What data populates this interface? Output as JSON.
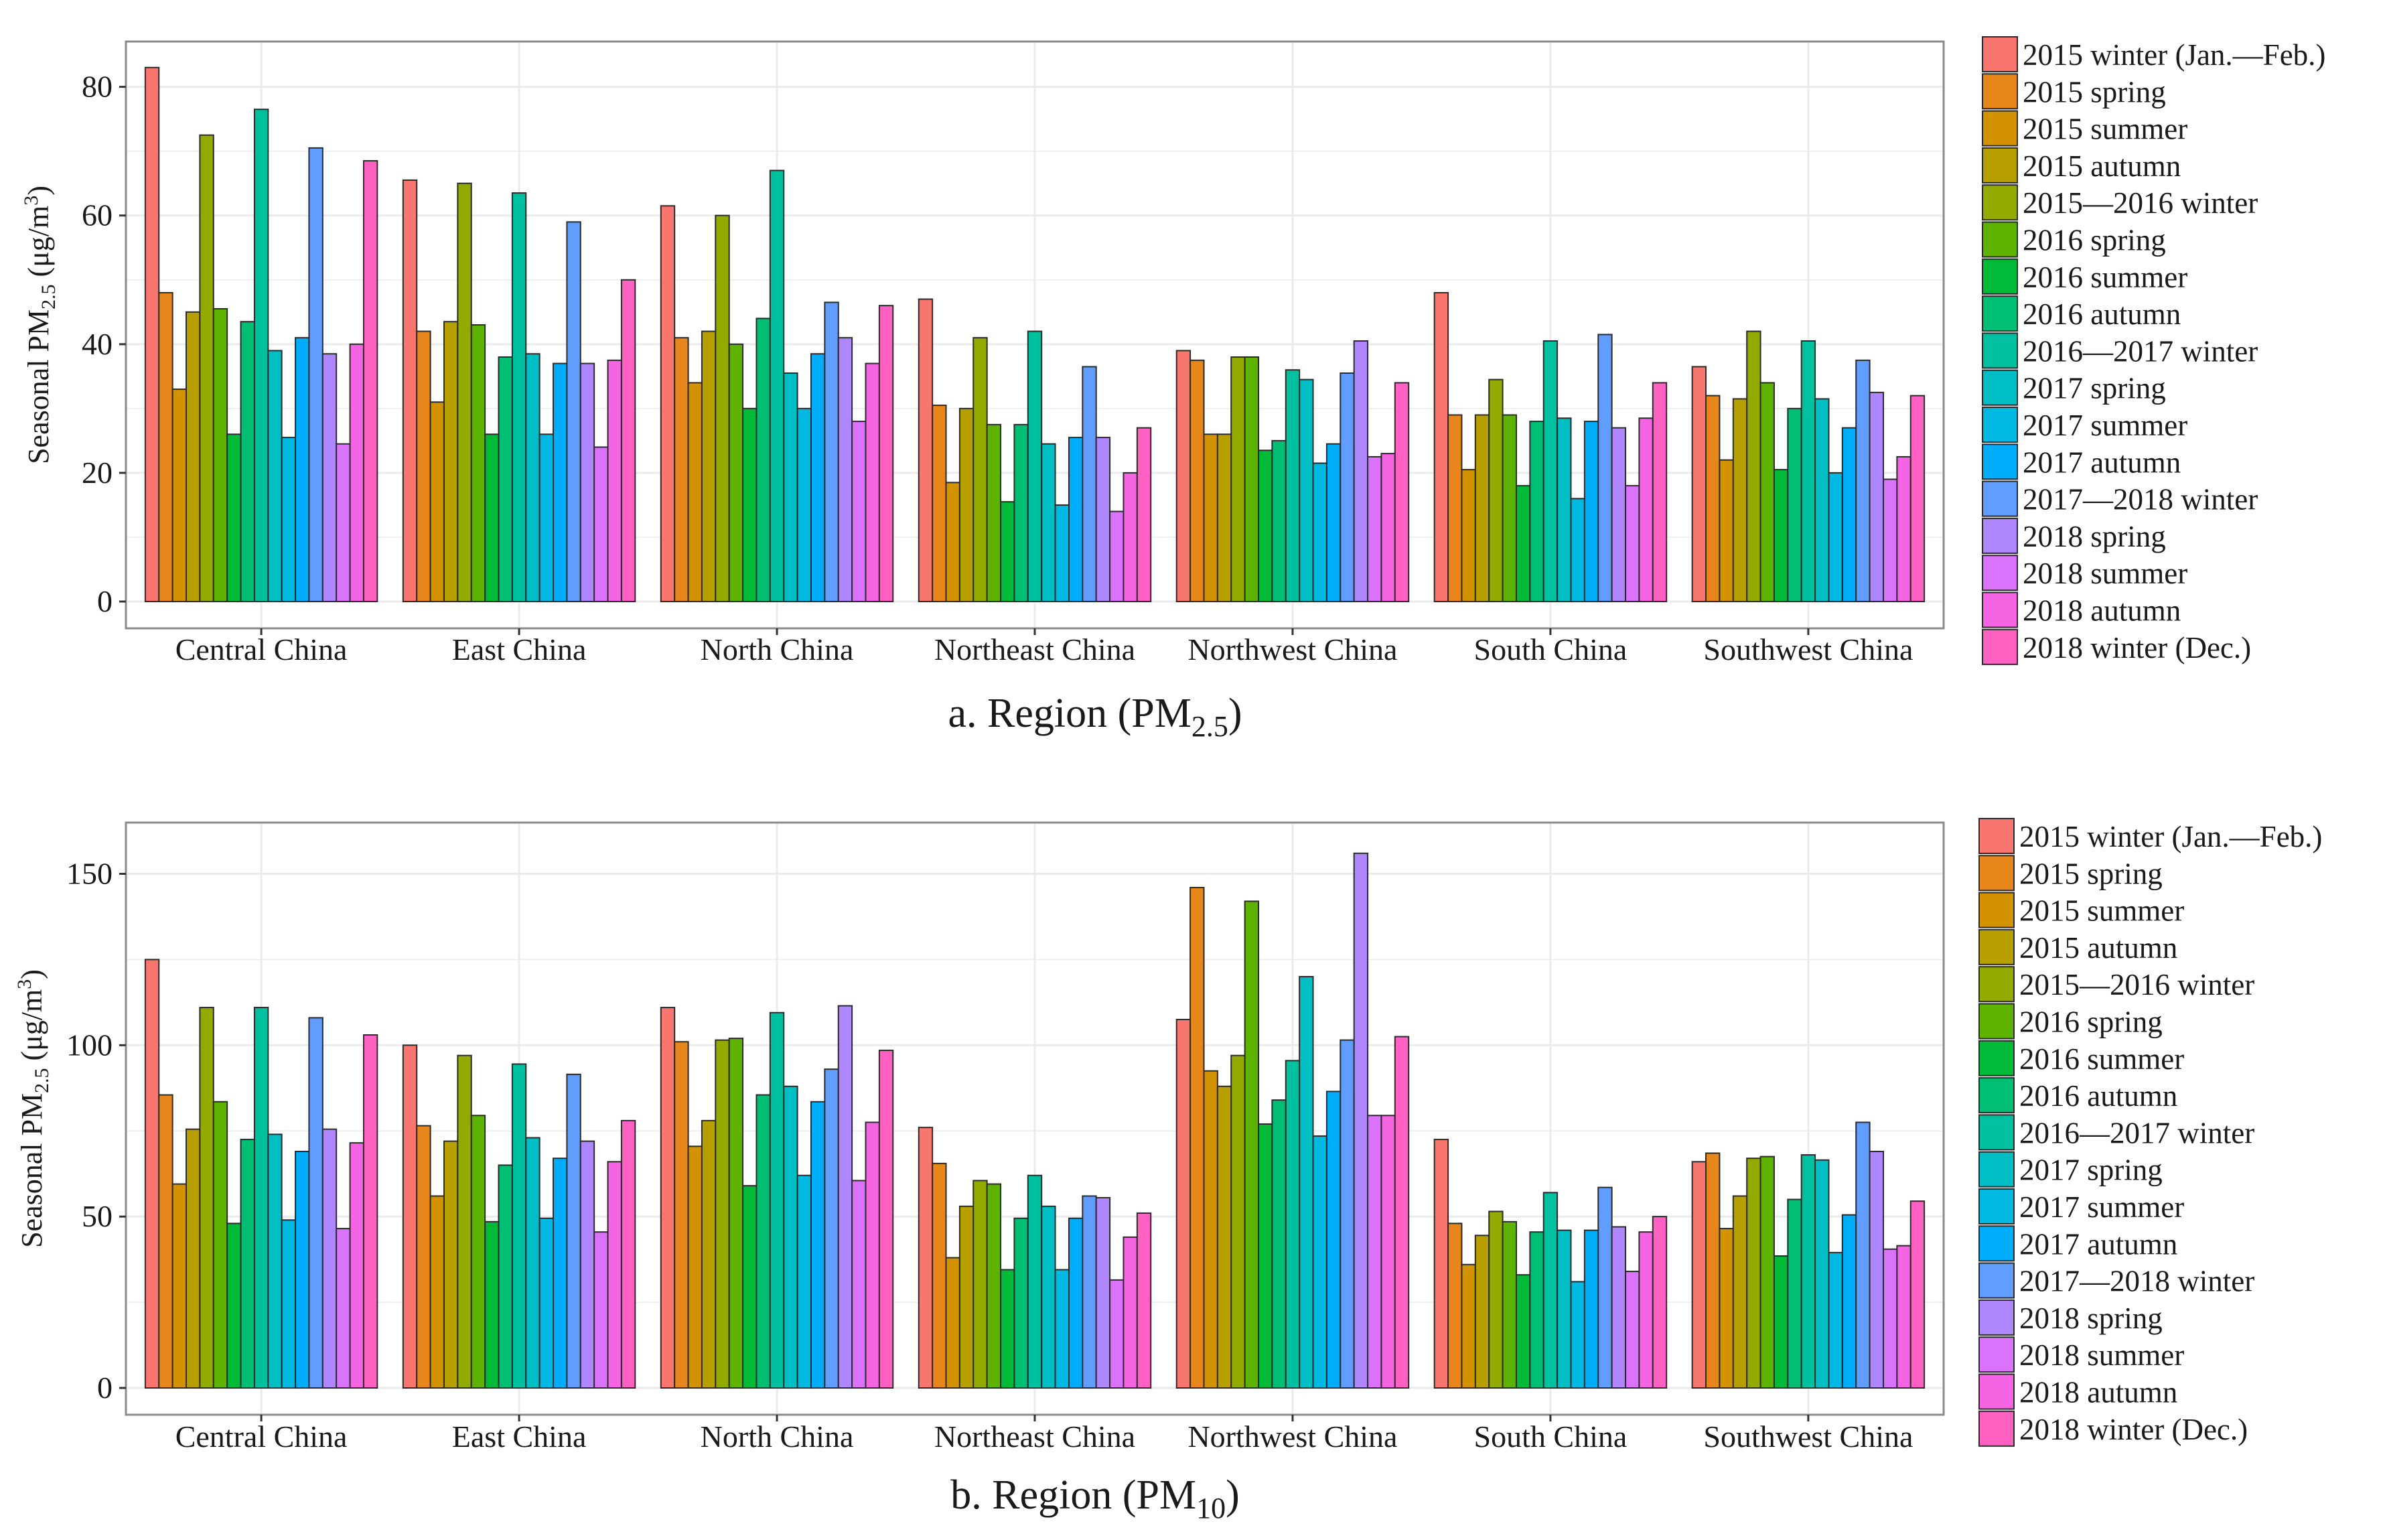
{
  "colors": {
    "series": [
      "#F8766D",
      "#E7861B",
      "#D39200",
      "#B79F00",
      "#93AA00",
      "#5EB300",
      "#00BA38",
      "#00BF74",
      "#00C19F",
      "#00BFC4",
      "#00B9E3",
      "#00ADFA",
      "#619CFF",
      "#AE87FF",
      "#DB72FB",
      "#F564E3",
      "#FF61C3"
    ],
    "panel_border": "#8a8a8a",
    "grid": "#ebebeb",
    "bar_outline": "#2b2b2b",
    "text": "#1a1a1a"
  },
  "chart_data": [
    {
      "type": "bar",
      "title": "a. Region (PM",
      "title_sub": "2.5",
      "title_suffix": ")",
      "ylabel": "Seasonal PM",
      "ylabel_sub": "2.5",
      "ylabel_unit": " (μg/m",
      "ylabel_sup": "3",
      "ylabel_end": ")",
      "ylim": [
        0,
        86
      ],
      "yticks": [
        "0",
        "20",
        "40",
        "60",
        "80"
      ],
      "ytick_values": [
        0,
        20,
        40,
        60,
        80
      ],
      "categories": [
        "Central China",
        "East China",
        "North China",
        "Northeast China",
        "Northwest China",
        "South China",
        "Southwest China"
      ],
      "series": [
        {
          "name": "2015 winter (Jan.—Feb.)",
          "values": [
            83,
            65.5,
            61.5,
            47,
            39,
            48,
            36.5
          ]
        },
        {
          "name": "2015 spring",
          "values": [
            48,
            42,
            41,
            30.5,
            37.5,
            29,
            32
          ]
        },
        {
          "name": "2015 summer",
          "values": [
            33,
            31,
            34,
            18.5,
            26,
            20.5,
            22
          ]
        },
        {
          "name": "2015 autumn",
          "values": [
            45,
            43.5,
            42,
            30,
            26,
            29,
            31.5
          ]
        },
        {
          "name": "2015—2016 winter",
          "values": [
            72.5,
            65,
            60,
            41,
            38,
            34.5,
            42
          ]
        },
        {
          "name": "2016 spring",
          "values": [
            45.5,
            43,
            40,
            27.5,
            38,
            29,
            34
          ]
        },
        {
          "name": "2016 summer",
          "values": [
            26,
            26,
            30,
            15.5,
            23.5,
            18,
            20.5
          ]
        },
        {
          "name": "2016 autumn",
          "values": [
            43.5,
            38,
            44,
            27.5,
            25,
            28,
            30
          ]
        },
        {
          "name": "2016—2017 winter",
          "values": [
            76.5,
            63.5,
            67,
            42,
            36,
            40.5,
            40.5
          ]
        },
        {
          "name": "2017 spring",
          "values": [
            39,
            38.5,
            35.5,
            24.5,
            34.5,
            28.5,
            31.5
          ]
        },
        {
          "name": "2017 summer",
          "values": [
            25.5,
            26,
            30,
            15,
            21.5,
            16,
            20
          ]
        },
        {
          "name": "2017 autumn",
          "values": [
            41,
            37,
            38.5,
            25.5,
            24.5,
            28,
            27
          ]
        },
        {
          "name": "2017—2018 winter",
          "values": [
            70.5,
            59,
            46.5,
            36.5,
            35.5,
            41.5,
            37.5
          ]
        },
        {
          "name": "2018 spring",
          "values": [
            38.5,
            37,
            41,
            25.5,
            40.5,
            27,
            32.5
          ]
        },
        {
          "name": "2018 summer",
          "values": [
            24.5,
            24,
            28,
            14,
            22.5,
            18,
            19
          ]
        },
        {
          "name": "2018 autumn",
          "values": [
            40,
            37.5,
            37,
            20,
            23,
            28.5,
            22.5
          ]
        },
        {
          "name": "2018 winter (Dec.)",
          "values": [
            68.5,
            50,
            46,
            27,
            34,
            34,
            32
          ]
        }
      ],
      "legend_position": "right"
    },
    {
      "type": "bar",
      "title": "b. Region (PM",
      "title_sub": "10",
      "title_suffix": ")",
      "ylabel": "Seasonal PM",
      "ylabel_sub": "2.5",
      "ylabel_unit": " (μg/m",
      "ylabel_sup": "3",
      "ylabel_end": ")",
      "ylim": [
        0,
        163
      ],
      "yticks": [
        "0",
        "50",
        "100",
        "150"
      ],
      "ytick_values": [
        0,
        50,
        100,
        150
      ],
      "categories": [
        "Central China",
        "East China",
        "North China",
        "Northeast China",
        "Northwest China",
        "South China",
        "Southwest China"
      ],
      "series": [
        {
          "name": "2015 winter (Jan.—Feb.)",
          "values": [
            125,
            100,
            111,
            76,
            107.5,
            72.5,
            66
          ]
        },
        {
          "name": "2015 spring",
          "values": [
            85.5,
            76.5,
            101,
            65.5,
            146,
            48,
            68.5
          ]
        },
        {
          "name": "2015 summer",
          "values": [
            59.5,
            56,
            70.5,
            38,
            92.5,
            36,
            46.5
          ]
        },
        {
          "name": "2015 autumn",
          "values": [
            75.5,
            72,
            78,
            53,
            88,
            44.5,
            56
          ]
        },
        {
          "name": "2015—2016 winter",
          "values": [
            111,
            97,
            101.5,
            60.5,
            97,
            51.5,
            67
          ]
        },
        {
          "name": "2016 spring",
          "values": [
            83.5,
            79.5,
            102,
            59.5,
            142,
            48.5,
            67.5
          ]
        },
        {
          "name": "2016 summer",
          "values": [
            48,
            48.5,
            59,
            34.5,
            77,
            33,
            38.5
          ]
        },
        {
          "name": "2016 autumn",
          "values": [
            72.5,
            65,
            85.5,
            49.5,
            84,
            45.5,
            55
          ]
        },
        {
          "name": "2016—2017 winter",
          "values": [
            111,
            94.5,
            109.5,
            62,
            95.5,
            57,
            68
          ]
        },
        {
          "name": "2017 spring",
          "values": [
            74,
            73,
            88,
            53,
            120,
            46,
            66.5
          ]
        },
        {
          "name": "2017 summer",
          "values": [
            49,
            49.5,
            62,
            34.5,
            73.5,
            31,
            39.5
          ]
        },
        {
          "name": "2017 autumn",
          "values": [
            69,
            67,
            83.5,
            49.5,
            86.5,
            46,
            50.5
          ]
        },
        {
          "name": "2017—2018 winter",
          "values": [
            108,
            91.5,
            93,
            56,
            101.5,
            58.5,
            77.5
          ]
        },
        {
          "name": "2018 spring",
          "values": [
            75.5,
            72,
            111.5,
            55.5,
            156,
            47,
            69
          ]
        },
        {
          "name": "2018 summer",
          "values": [
            46.5,
            45.5,
            60.5,
            31.5,
            79.5,
            34,
            40.5
          ]
        },
        {
          "name": "2018 autumn",
          "values": [
            71.5,
            66,
            77.5,
            44,
            79.5,
            45.5,
            41.5
          ]
        },
        {
          "name": "2018 winter (Dec.)",
          "values": [
            103,
            78,
            98.5,
            51,
            102.5,
            50,
            54.5
          ]
        }
      ],
      "legend_position": "right"
    }
  ]
}
